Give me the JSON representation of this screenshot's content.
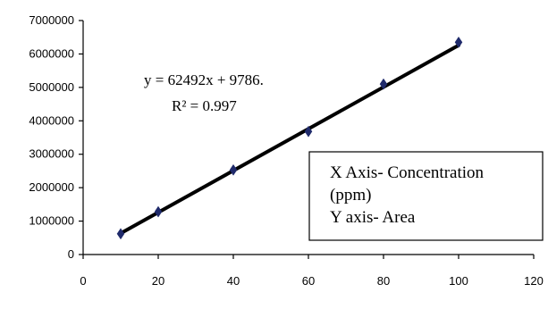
{
  "chart_data": {
    "type": "scatter",
    "x": [
      10,
      20,
      40,
      60,
      80,
      100
    ],
    "y": [
      620000,
      1280000,
      2530000,
      3680000,
      5100000,
      6350000
    ],
    "trendline": {
      "slope": 62492,
      "intercept": 9786
    },
    "equation_label": "y = 62492x + 9786.",
    "r2_label": "R² = 0.997",
    "xlim": [
      0,
      120
    ],
    "ylim": [
      0,
      7000000
    ],
    "x_ticks": [
      0,
      20,
      40,
      60,
      80,
      100,
      120
    ],
    "y_ticks": [
      0,
      1000000,
      2000000,
      3000000,
      4000000,
      5000000,
      6000000,
      7000000
    ],
    "legend_lines": [
      "X Axis- Concentration",
      "(ppm)",
      "Y axis- Area"
    ],
    "colors": {
      "line": "#000000",
      "marker": "#1f2a6b",
      "axis": "#000000"
    },
    "grid": false
  }
}
